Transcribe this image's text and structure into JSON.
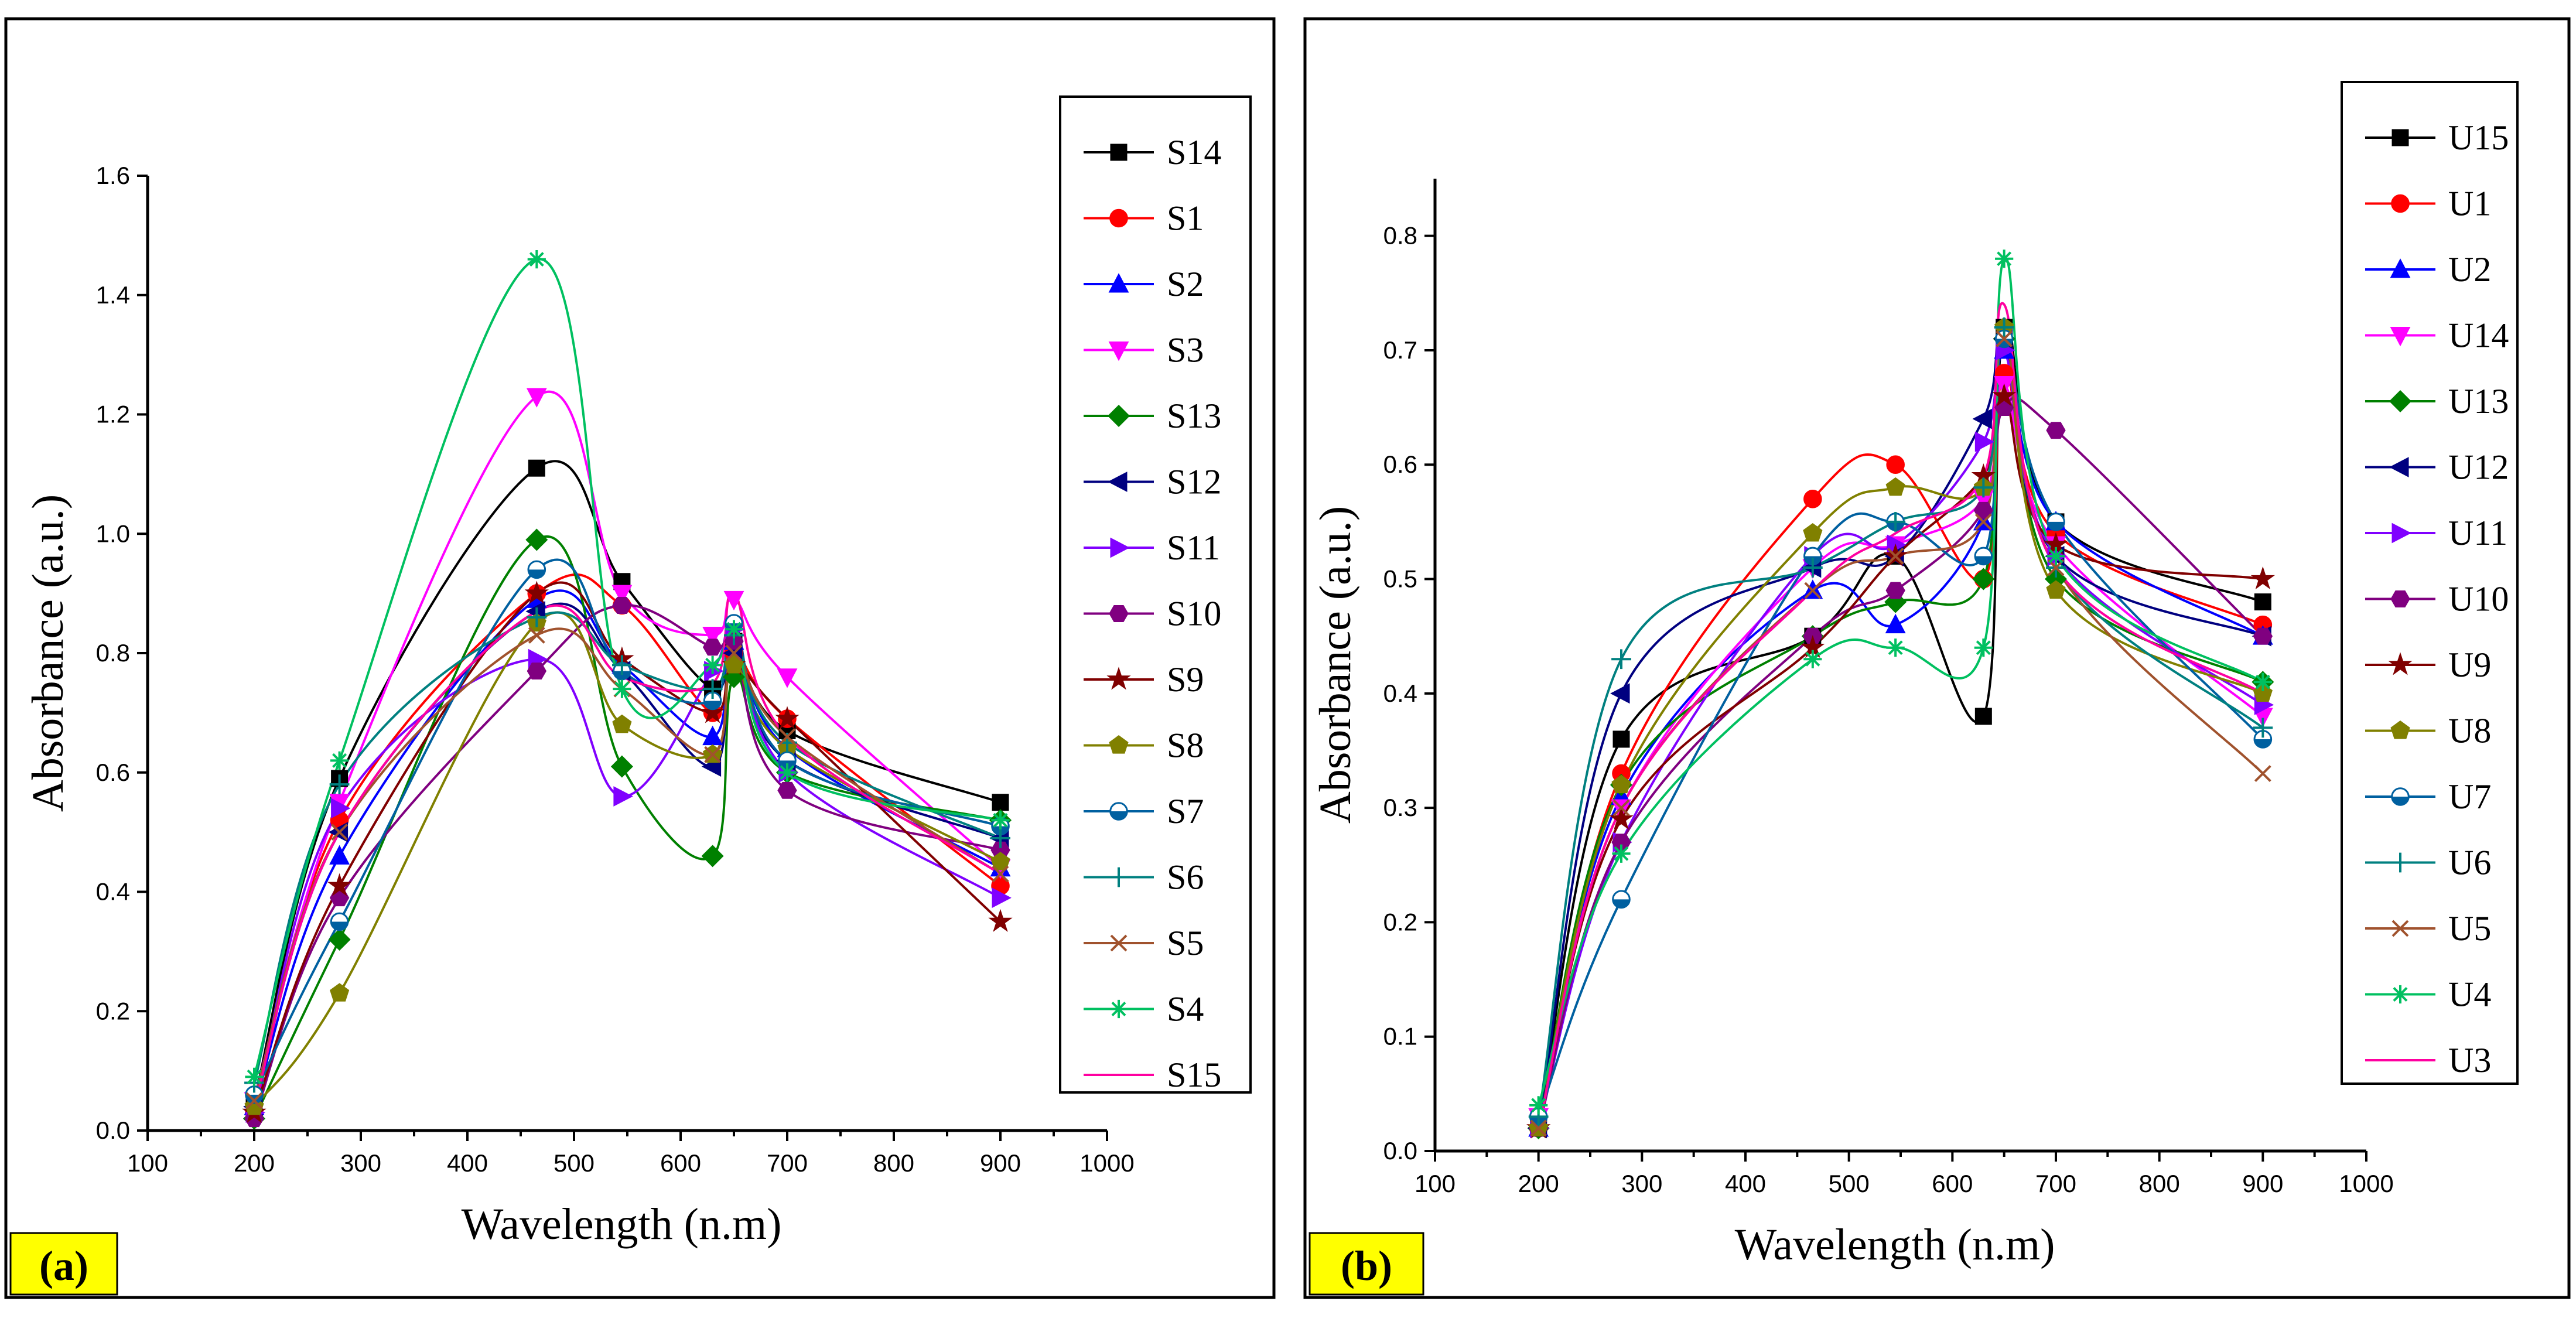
{
  "chart_data": [
    {
      "panel_label": "(a)",
      "type": "line",
      "title": "",
      "xlabel": "Wavelength (n.m)",
      "ylabel": "Absorbance (a.u.)",
      "xlim": [
        100,
        1000
      ],
      "ylim": [
        0.0,
        1.6
      ],
      "xticks": [
        "100",
        "200",
        "300",
        "400",
        "500",
        "600",
        "700",
        "800",
        "900",
        "1000"
      ],
      "yticks": [
        "0.0",
        "0.2",
        "0.4",
        "0.6",
        "0.8",
        "1.0",
        "1.2",
        "1.4",
        "1.6"
      ],
      "x": [
        200,
        280,
        465,
        545,
        630,
        650,
        700,
        900
      ],
      "legend_position": "right",
      "series": [
        {
          "name": "S14",
          "color": "#000000",
          "marker": "square",
          "values": [
            0.05,
            0.59,
            1.11,
            0.92,
            0.74,
            0.82,
            0.67,
            0.55
          ]
        },
        {
          "name": "S1",
          "color": "#ff0000",
          "marker": "circle",
          "values": [
            0.03,
            0.52,
            0.9,
            0.88,
            0.7,
            0.8,
            0.69,
            0.41
          ]
        },
        {
          "name": "S2",
          "color": "#0000ff",
          "marker": "triangle-up",
          "values": [
            0.04,
            0.46,
            0.89,
            0.78,
            0.66,
            0.82,
            0.64,
            0.44
          ]
        },
        {
          "name": "S3",
          "color": "#ff00ff",
          "marker": "triangle-down",
          "values": [
            0.05,
            0.55,
            1.23,
            0.9,
            0.83,
            0.89,
            0.76,
            0.44
          ]
        },
        {
          "name": "S13",
          "color": "#008000",
          "marker": "diamond",
          "values": [
            0.02,
            0.32,
            0.99,
            0.61,
            0.46,
            0.76,
            0.6,
            0.52
          ]
        },
        {
          "name": "S12",
          "color": "#000080",
          "marker": "triangle-left",
          "values": [
            0.04,
            0.5,
            0.87,
            0.77,
            0.61,
            0.8,
            0.62,
            0.49
          ]
        },
        {
          "name": "S11",
          "color": "#8000ff",
          "marker": "triangle-right",
          "values": [
            0.03,
            0.54,
            0.79,
            0.56,
            0.77,
            0.84,
            0.6,
            0.39
          ]
        },
        {
          "name": "S10",
          "color": "#800080",
          "marker": "hexagon",
          "values": [
            0.02,
            0.39,
            0.77,
            0.88,
            0.81,
            0.82,
            0.57,
            0.47
          ]
        },
        {
          "name": "S9",
          "color": "#800000",
          "marker": "star",
          "values": [
            0.03,
            0.41,
            0.9,
            0.79,
            0.7,
            0.78,
            0.69,
            0.35
          ]
        },
        {
          "name": "S8",
          "color": "#808000",
          "marker": "pentagon",
          "values": [
            0.04,
            0.23,
            0.85,
            0.68,
            0.63,
            0.78,
            0.64,
            0.45
          ]
        },
        {
          "name": "S7",
          "color": "#0060a0",
          "marker": "half-circle",
          "values": [
            0.06,
            0.35,
            0.94,
            0.77,
            0.72,
            0.85,
            0.62,
            0.51
          ]
        },
        {
          "name": "S6",
          "color": "#008080",
          "marker": "plus",
          "values": [
            0.08,
            0.58,
            0.86,
            0.78,
            0.74,
            0.83,
            0.65,
            0.49
          ]
        },
        {
          "name": "S5",
          "color": "#a0522d",
          "marker": "x",
          "values": [
            0.05,
            0.5,
            0.83,
            0.74,
            0.63,
            0.8,
            0.66,
            0.43
          ]
        },
        {
          "name": "S4",
          "color": "#00c060",
          "marker": "asterisk",
          "values": [
            0.09,
            0.62,
            1.46,
            0.74,
            0.78,
            0.84,
            0.6,
            0.52
          ]
        },
        {
          "name": "S15",
          "color": "#ff00a0",
          "marker": "none",
          "values": [
            0.04,
            0.5,
            0.87,
            0.76,
            0.75,
            0.9,
            0.66,
            0.43
          ]
        }
      ]
    },
    {
      "panel_label": "(b)",
      "type": "line",
      "title": "",
      "xlabel": "Wavelength (n.m)",
      "ylabel": "Absorbance (a.u.)",
      "xlim": [
        100,
        1000
      ],
      "ylim": [
        0.0,
        0.85
      ],
      "xticks": [
        "100",
        "200",
        "300",
        "400",
        "500",
        "600",
        "700",
        "800",
        "900",
        "1000"
      ],
      "yticks": [
        "0.0",
        "0.1",
        "0.2",
        "0.3",
        "0.4",
        "0.5",
        "0.6",
        "0.7",
        "0.8"
      ],
      "x": [
        200,
        280,
        465,
        545,
        630,
        650,
        700,
        900
      ],
      "legend_position": "right",
      "series": [
        {
          "name": "U15",
          "color": "#000000",
          "marker": "square",
          "values": [
            0.02,
            0.36,
            0.45,
            0.52,
            0.38,
            0.72,
            0.55,
            0.48
          ]
        },
        {
          "name": "U1",
          "color": "#ff0000",
          "marker": "circle",
          "values": [
            0.02,
            0.33,
            0.57,
            0.6,
            0.5,
            0.68,
            0.54,
            0.46
          ]
        },
        {
          "name": "U2",
          "color": "#0000ff",
          "marker": "triangle-up",
          "values": [
            0.02,
            0.31,
            0.49,
            0.46,
            0.55,
            0.7,
            0.55,
            0.45
          ]
        },
        {
          "name": "U14",
          "color": "#ff00ff",
          "marker": "triangle-down",
          "values": [
            0.03,
            0.3,
            0.51,
            0.53,
            0.57,
            0.67,
            0.53,
            0.38
          ]
        },
        {
          "name": "U13",
          "color": "#008000",
          "marker": "diamond",
          "values": [
            0.02,
            0.32,
            0.45,
            0.48,
            0.5,
            0.71,
            0.5,
            0.41
          ]
        },
        {
          "name": "U12",
          "color": "#000080",
          "marker": "triangle-left",
          "values": [
            0.02,
            0.4,
            0.51,
            0.52,
            0.64,
            0.71,
            0.52,
            0.45
          ]
        },
        {
          "name": "U11",
          "color": "#8000ff",
          "marker": "triangle-right",
          "values": [
            0.02,
            0.27,
            0.52,
            0.53,
            0.62,
            0.7,
            0.52,
            0.39
          ]
        },
        {
          "name": "U10",
          "color": "#800080",
          "marker": "hexagon",
          "values": [
            0.02,
            0.27,
            0.45,
            0.49,
            0.56,
            0.65,
            0.63,
            0.45
          ]
        },
        {
          "name": "U9",
          "color": "#800000",
          "marker": "star",
          "values": [
            0.02,
            0.29,
            0.44,
            0.52,
            0.59,
            0.66,
            0.53,
            0.5
          ]
        },
        {
          "name": "U8",
          "color": "#808000",
          "marker": "pentagon",
          "values": [
            0.02,
            0.32,
            0.54,
            0.58,
            0.58,
            0.72,
            0.49,
            0.4
          ]
        },
        {
          "name": "U7",
          "color": "#0060a0",
          "marker": "half-circle",
          "values": [
            0.03,
            0.22,
            0.52,
            0.55,
            0.52,
            0.71,
            0.55,
            0.36
          ]
        },
        {
          "name": "U6",
          "color": "#008080",
          "marker": "plus",
          "values": [
            0.03,
            0.43,
            0.51,
            0.55,
            0.58,
            0.72,
            0.51,
            0.37
          ]
        },
        {
          "name": "U5",
          "color": "#a0522d",
          "marker": "x",
          "values": [
            0.02,
            0.3,
            0.49,
            0.52,
            0.55,
            0.71,
            0.51,
            0.33
          ]
        },
        {
          "name": "U4",
          "color": "#00c060",
          "marker": "asterisk",
          "values": [
            0.04,
            0.26,
            0.43,
            0.44,
            0.44,
            0.78,
            0.52,
            0.41
          ]
        },
        {
          "name": "U3",
          "color": "#ff00a0",
          "marker": "none",
          "values": [
            0.02,
            0.3,
            0.49,
            0.54,
            0.59,
            0.74,
            0.51,
            0.4
          ]
        }
      ]
    }
  ]
}
